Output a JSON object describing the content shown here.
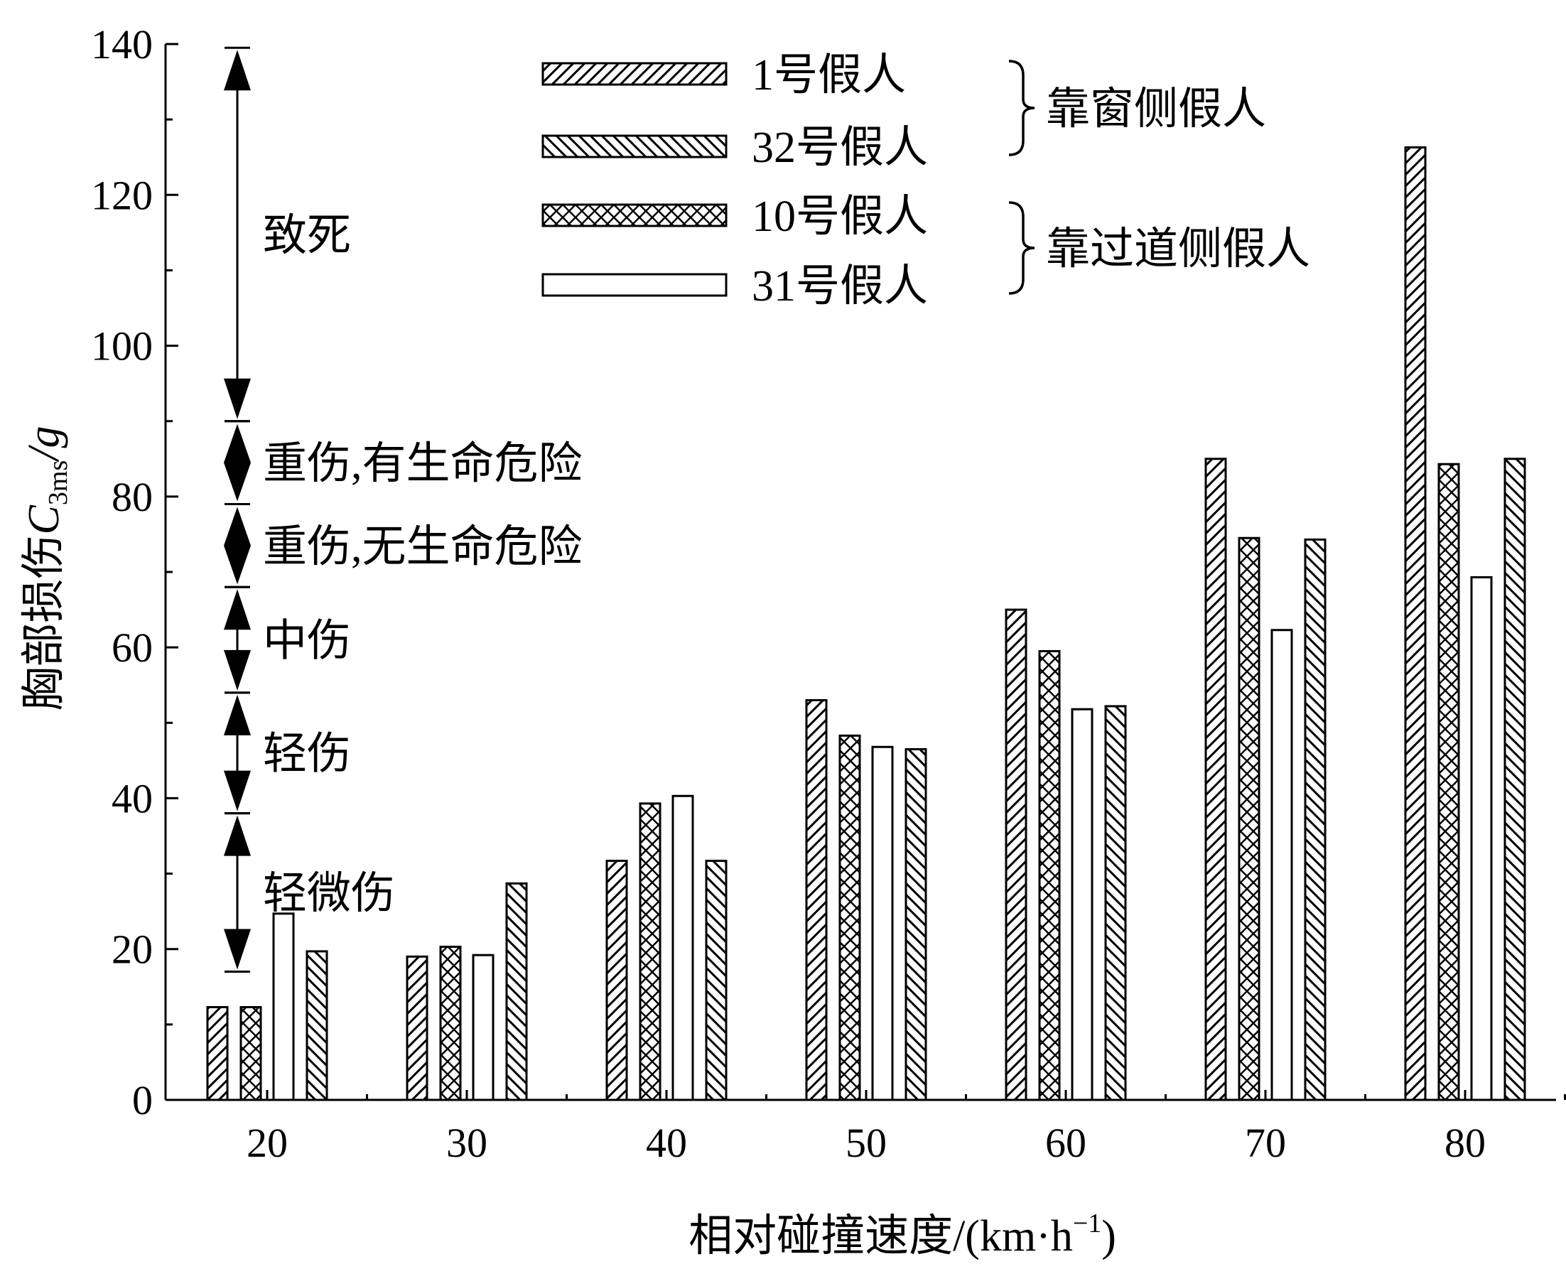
{
  "chart_data": {
    "type": "bar",
    "xlabel": "相对碰撞速度/(km·h",
    "xlabel_sup": "−1",
    "xlabel_close": ")",
    "ylabel_main": "胸部损伤",
    "ylabel_var": "C",
    "ylabel_sub": "3ms",
    "ylabel_unit": "/g",
    "ylim": [
      0,
      140
    ],
    "yticks": [
      0,
      20,
      40,
      60,
      80,
      100,
      120,
      140
    ],
    "categories": [
      "20",
      "30",
      "40",
      "50",
      "60",
      "70",
      "80"
    ],
    "series": [
      {
        "name": "1号假人",
        "pattern": "diag-fwd",
        "values": [
          12.3,
          19.0,
          31.7,
          53.0,
          65.0,
          85.0,
          126.3
        ]
      },
      {
        "name": "10号假人",
        "pattern": "cross",
        "values": [
          12.3,
          20.3,
          39.3,
          48.3,
          59.5,
          74.5,
          84.3
        ]
      },
      {
        "name": "31号假人",
        "pattern": "blank",
        "values": [
          24.7,
          19.2,
          40.3,
          46.8,
          51.8,
          62.3,
          69.3
        ]
      },
      {
        "name": "32号假人",
        "pattern": "diag-back",
        "values": [
          19.7,
          28.7,
          31.7,
          46.5,
          52.2,
          74.3,
          85.0
        ]
      }
    ],
    "legend": {
      "placement": "top-center",
      "order": [
        "1号假人",
        "32号假人",
        "10号假人",
        "31号假人"
      ],
      "groups": [
        {
          "label": "靠窗侧假人",
          "members": [
            "1号假人",
            "32号假人"
          ]
        },
        {
          "label": "靠过道侧假人",
          "members": [
            "10号假人",
            "31号假人"
          ]
        }
      ]
    },
    "injury_levels": [
      {
        "label": "致死",
        "from": 90,
        "to": 139.5,
        "arrow": "double"
      },
      {
        "label": "重伤,有生命危险",
        "from": 79,
        "to": 90,
        "arrow": "diamond"
      },
      {
        "label": "重伤,无生命危险",
        "from": 68,
        "to": 79,
        "arrow": "diamond"
      },
      {
        "label": "中伤",
        "from": 54,
        "to": 68,
        "arrow": "double"
      },
      {
        "label": "轻伤",
        "from": 38,
        "to": 54,
        "arrow": "double"
      },
      {
        "label": "轻微伤",
        "from": 17,
        "to": 38,
        "arrow": "double"
      }
    ]
  }
}
